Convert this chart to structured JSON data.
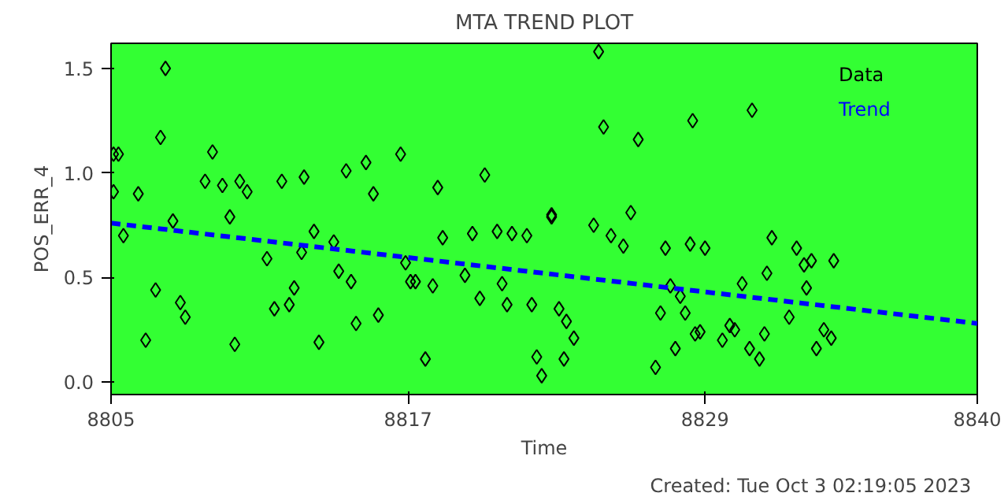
{
  "chart_data": {
    "type": "scatter",
    "title": "MTA TREND PLOT",
    "xlabel": "Time",
    "ylabel": "POS_ERR_4",
    "annotations": [
      "Created: Tue Oct  3 02:19:05 2023"
    ],
    "xlim": [
      8805,
      8840
    ],
    "ylim": [
      -0.06,
      1.62
    ],
    "xticks": [
      8805,
      8817,
      8829,
      8840
    ],
    "yticks": [
      {
        "value": 0,
        "label": "0.0"
      },
      {
        "value": 0.5,
        "label": "0.5"
      },
      {
        "value": 1,
        "label": "1.0"
      },
      {
        "value": 1.5,
        "label": "1.5"
      }
    ],
    "legend": "top right",
    "series": [
      {
        "name": "Data",
        "marker": "diamond",
        "color": "#000000",
        "x": [
          8805.1,
          8805.1,
          8805.3,
          8805.5,
          8806.1,
          8806.4,
          8806.8,
          8807.0,
          8807.2,
          8807.5,
          8807.8,
          8808.0,
          8808.8,
          8809.1,
          8809.5,
          8809.8,
          8810.0,
          8810.2,
          8810.5,
          8811.3,
          8811.6,
          8811.9,
          8812.2,
          8812.4,
          8812.7,
          8812.8,
          8813.2,
          8813.4,
          8814.0,
          8814.2,
          8814.5,
          8814.7,
          8814.9,
          8815.3,
          8815.6,
          8815.8,
          8816.7,
          8816.9,
          8817.1,
          8817.3,
          8817.7,
          8818.0,
          8818.2,
          8818.4,
          8819.3,
          8819.6,
          8819.9,
          8820.1,
          8820.6,
          8820.8,
          8821.0,
          8821.2,
          8821.8,
          8822.0,
          8822.2,
          8822.4,
          8822.8,
          8822.8,
          8823.1,
          8823.3,
          8823.4,
          8823.7,
          8824.5,
          8824.7,
          8824.9,
          8825.2,
          8825.7,
          8826.0,
          8826.3,
          8827.0,
          8827.2,
          8827.4,
          8827.6,
          8827.8,
          8828.0,
          8828.2,
          8828.4,
          8828.5,
          8828.6,
          8828.8,
          8829.0,
          8829.7,
          8830.0,
          8830.2,
          8830.5,
          8830.8,
          8830.9,
          8831.2,
          8831.4,
          8831.5,
          8831.7,
          8832.4,
          8832.7,
          8833.0,
          8833.1,
          8833.3,
          8833.5,
          8833.8,
          8834.1,
          8834.2
        ],
        "values": [
          0.91,
          1.09,
          1.09,
          0.7,
          0.9,
          0.2,
          0.44,
          1.17,
          1.5,
          0.77,
          0.38,
          0.31,
          0.96,
          1.1,
          0.94,
          0.79,
          0.18,
          0.96,
          0.91,
          0.59,
          0.35,
          0.96,
          0.37,
          0.45,
          0.62,
          0.98,
          0.72,
          0.19,
          0.67,
          0.53,
          1.01,
          0.48,
          0.28,
          1.05,
          0.9,
          0.32,
          1.09,
          0.57,
          0.48,
          0.48,
          0.11,
          0.46,
          0.93,
          0.69,
          0.51,
          0.71,
          0.4,
          0.99,
          0.72,
          0.47,
          0.37,
          0.71,
          0.7,
          0.37,
          0.12,
          0.03,
          0.79,
          0.8,
          0.35,
          0.11,
          0.29,
          0.21,
          0.75,
          1.58,
          1.22,
          0.7,
          0.65,
          0.81,
          1.16,
          0.07,
          0.33,
          0.64,
          0.46,
          0.16,
          0.41,
          0.33,
          0.66,
          1.25,
          0.23,
          0.24,
          0.64,
          0.2,
          0.27,
          0.25,
          0.47,
          0.16,
          1.3,
          0.11,
          0.23,
          0.52,
          0.69,
          0.31,
          0.64,
          0.56,
          0.45,
          0.58,
          0.16,
          0.25,
          0.21,
          0.58
        ]
      },
      {
        "name": "Trend",
        "type": "line",
        "marker": "none",
        "line_style": "dashed",
        "color": "#0000ff",
        "x": [
          8805,
          8840
        ],
        "values": [
          0.76,
          0.28
        ]
      }
    ]
  }
}
